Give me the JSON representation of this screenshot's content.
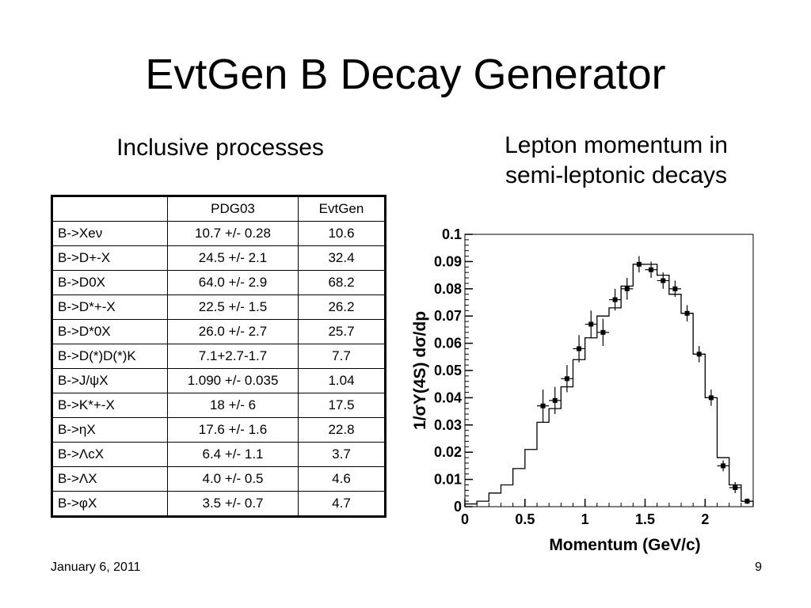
{
  "slide": {
    "title": "EvtGen B Decay Generator",
    "left_heading": "Inclusive processes",
    "right_heading_lines": [
      "Lepton momentum in",
      "semi-leptonic decays"
    ],
    "footer_date": "January 6, 2011",
    "page_number": "9"
  },
  "table": {
    "headers": [
      "",
      "PDG03",
      "EvtGen"
    ],
    "rows": [
      {
        "process": "B->Xeν",
        "pdg03": "10.7 +/- 0.28",
        "evtgen": "10.6"
      },
      {
        "process": "B->D+-X",
        "pdg03": "24.5 +/- 2.1",
        "evtgen": "32.4"
      },
      {
        "process": "B->D0X",
        "pdg03": "64.0 +/- 2.9",
        "evtgen": "68.2"
      },
      {
        "process": "B->D*+-X",
        "pdg03": "22.5 +/- 1.5",
        "evtgen": "26.2"
      },
      {
        "process": "B->D*0X",
        "pdg03": "26.0 +/- 2.7",
        "evtgen": "25.7"
      },
      {
        "process": "B->D(*)D(*)K",
        "pdg03": "7.1+2.7-1.7",
        "evtgen": "7.7"
      },
      {
        "process": "B->J/ψX",
        "pdg03": "1.090 +/- 0.035",
        "evtgen": "1.04"
      },
      {
        "process": "B->K*+-X",
        "pdg03": "18 +/- 6",
        "evtgen": "17.5"
      },
      {
        "process": "B->ηX",
        "pdg03": "17.6 +/- 1.6",
        "evtgen": "22.8"
      },
      {
        "process": "B->ΛcX",
        "pdg03": "6.4 +/- 1.1",
        "evtgen": "3.7"
      },
      {
        "process": "B->ΛX",
        "pdg03": "4.0 +/- 0.5",
        "evtgen": "4.6"
      },
      {
        "process": "B->φX",
        "pdg03": "3.5 +/- 0.7",
        "evtgen": "4.7"
      }
    ]
  },
  "chart_data": {
    "type": "line",
    "title": "",
    "xlabel": "Momentum (GeV/c)",
    "ylabel": "1/σΥ(4S) dσ/dp",
    "xlim": [
      0,
      2.4
    ],
    "ylim": [
      0,
      0.1
    ],
    "x_ticks": [
      "0",
      "0.5",
      "1",
      "1.5",
      "2"
    ],
    "y_ticks": [
      "0",
      "0.01",
      "0.02",
      "0.03",
      "0.04",
      "0.05",
      "0.06",
      "0.07",
      "0.08",
      "0.09",
      "0.1"
    ],
    "series": [
      {
        "style": "histogram",
        "bin_edges": [
          0,
          0.1,
          0.2,
          0.3,
          0.4,
          0.5,
          0.6,
          0.7,
          0.8,
          0.9,
          1.0,
          1.1,
          1.2,
          1.3,
          1.4,
          1.5,
          1.6,
          1.7,
          1.8,
          1.9,
          2.0,
          2.1,
          2.2,
          2.3,
          2.4
        ],
        "values": [
          0.001,
          0.002,
          0.005,
          0.008,
          0.014,
          0.021,
          0.031,
          0.036,
          0.044,
          0.054,
          0.062,
          0.07,
          0.073,
          0.081,
          0.089,
          0.089,
          0.085,
          0.078,
          0.071,
          0.056,
          0.04,
          0.018,
          0.008,
          0.002
        ]
      },
      {
        "style": "points_with_errors",
        "x": [
          0.65,
          0.75,
          0.85,
          0.95,
          1.05,
          1.15,
          1.25,
          1.35,
          1.45,
          1.55,
          1.65,
          1.75,
          1.85,
          1.95,
          2.05,
          2.15,
          2.25,
          2.35
        ],
        "y": [
          0.037,
          0.039,
          0.047,
          0.058,
          0.067,
          0.064,
          0.076,
          0.08,
          0.089,
          0.087,
          0.083,
          0.08,
          0.071,
          0.056,
          0.04,
          0.015,
          0.007,
          0.002
        ],
        "yerr": [
          0.006,
          0.005,
          0.005,
          0.005,
          0.005,
          0.005,
          0.004,
          0.004,
          0.003,
          0.003,
          0.003,
          0.003,
          0.003,
          0.003,
          0.003,
          0.002,
          0.002,
          0.001
        ],
        "xerr": 0.05
      }
    ],
    "grid": false,
    "legend": "none"
  }
}
